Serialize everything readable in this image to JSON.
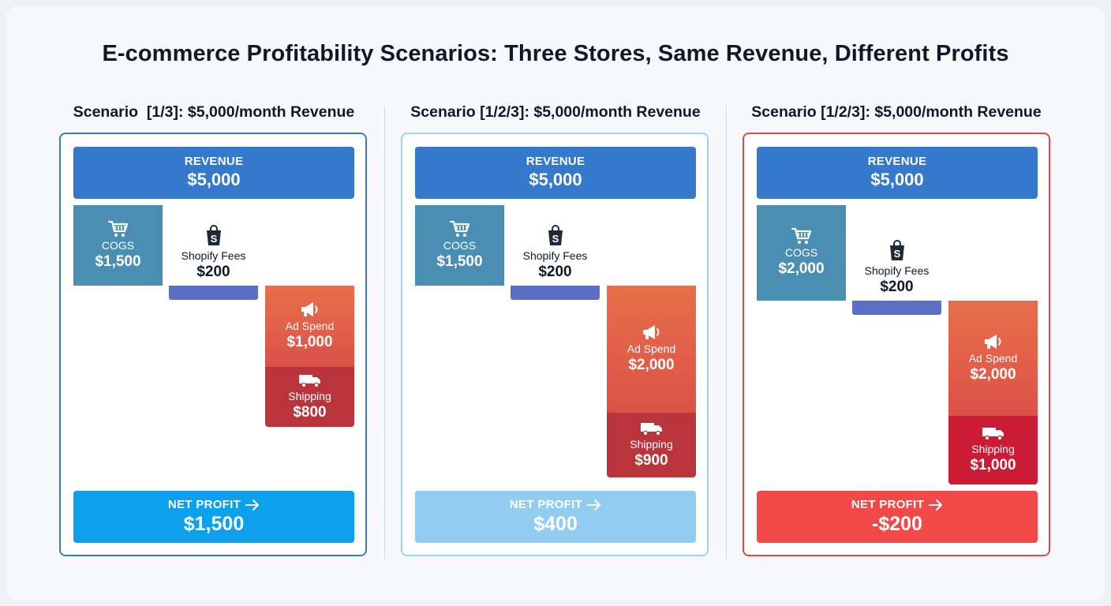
{
  "title": "E-commerce Profitability Scenarios: Three Stores, Same Revenue, Different Profits",
  "labels": {
    "revenue": "REVENUE",
    "cogs": "COGS",
    "shopify_fees": "Shopify Fees",
    "ad_spend": "Ad Spend",
    "shipping": "Shipping",
    "net_profit": "NET PROFIT"
  },
  "icons": [
    "shopping-cart-icon",
    "shopify-bag-icon",
    "megaphone-icon",
    "delivery-truck-icon",
    "arrow-right-icon"
  ],
  "colors": {
    "revenue": "#3479cc",
    "cogs": "#4a8fb3",
    "shopify_fees": "#5b70c4",
    "ad_spend": "#e4604a",
    "shipping": "#b9353b",
    "profit_positive": "#0ea0ec",
    "profit_low": "#90cdf0",
    "profit_negative": "#f24848"
  },
  "scenarios": [
    {
      "title": "Scenario  [1/3]: $5,000/month Revenue",
      "revenue": "$5,000",
      "cogs": "$1,500",
      "shopify_fees": "$200",
      "ad_spend": "$1,000",
      "shipping": "$800",
      "net_profit": "$1,500"
    },
    {
      "title": "Scenario [1/2/3]: $5,000/month Revenue",
      "revenue": "$5,000",
      "cogs": "$1,500",
      "shopify_fees": "$200",
      "ad_spend": "$2,000",
      "shipping": "$900",
      "net_profit": "$400"
    },
    {
      "title": "Scenario [1/2/3]: $5,000/month Revenue",
      "revenue": "$5,000",
      "cogs": "$2,000",
      "shopify_fees": "$200",
      "ad_spend": "$2,000",
      "shipping": "$1,000",
      "net_profit": "-$200"
    }
  ],
  "chart_data": [
    {
      "type": "bar",
      "title": "Scenario  [1/3]: $5,000/month Revenue",
      "categories": [
        "REVENUE",
        "COGS",
        "Shopify Fees",
        "Ad Spend",
        "Shipping",
        "NET PROFIT"
      ],
      "values": [
        5000,
        1500,
        200,
        1000,
        800,
        1500
      ]
    },
    {
      "type": "bar",
      "title": "Scenario [1/2/3]: $5,000/month Revenue",
      "categories": [
        "REVENUE",
        "COGS",
        "Shopify Fees",
        "Ad Spend",
        "Shipping",
        "NET PROFIT"
      ],
      "values": [
        5000,
        1500,
        200,
        2000,
        900,
        400
      ]
    },
    {
      "type": "bar",
      "title": "Scenario [1/2/3]: $5,000/month Revenue",
      "categories": [
        "REVENUE",
        "COGS",
        "Shopify Fees",
        "Ad Spend",
        "Shipping",
        "NET PROFIT"
      ],
      "values": [
        5000,
        2000,
        200,
        2000,
        1000,
        -200
      ]
    }
  ]
}
